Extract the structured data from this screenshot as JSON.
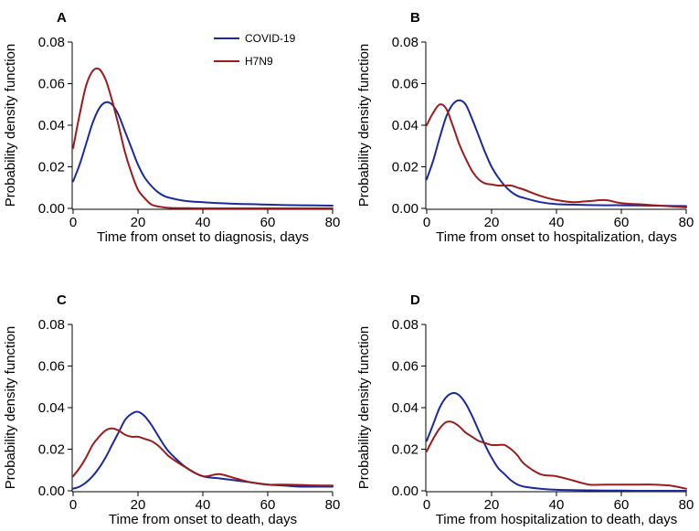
{
  "legend": {
    "entries": [
      {
        "name": "COVID-19",
        "color": "#1c2a9a"
      },
      {
        "name": "H7N9",
        "color": "#9a1c1c"
      }
    ]
  },
  "chart_data": [
    {
      "panel": "A",
      "type": "line",
      "xlabel": "Time from onset to diagnosis, days",
      "ylabel": "Probability density function",
      "xlim": [
        0,
        80
      ],
      "ylim": [
        0,
        0.08
      ],
      "xticks": [
        "0",
        "20",
        "40",
        "60",
        "80"
      ],
      "yticks": [
        "0.00",
        "0.02",
        "0.04",
        "0.06",
        "0.08"
      ],
      "legend_position": "top-right",
      "x": [
        0,
        2,
        4,
        6,
        8,
        10,
        12,
        14,
        16,
        18,
        20,
        22,
        24,
        26,
        28,
        30,
        35,
        40,
        45,
        50,
        55,
        60,
        65,
        70,
        75,
        80
      ],
      "series": [
        {
          "name": "COVID-19",
          "color": "#1c2a9a",
          "values": [
            0.013,
            0.021,
            0.031,
            0.041,
            0.048,
            0.051,
            0.05,
            0.045,
            0.037,
            0.029,
            0.021,
            0.015,
            0.011,
            0.008,
            0.006,
            0.005,
            0.0035,
            0.003,
            0.0025,
            0.0022,
            0.002,
            0.0018,
            0.0016,
            0.0015,
            0.0014,
            0.0013
          ]
        },
        {
          "name": "H7N9",
          "color": "#9a1c1c",
          "values": [
            0.029,
            0.045,
            0.059,
            0.066,
            0.067,
            0.062,
            0.052,
            0.04,
            0.027,
            0.017,
            0.009,
            0.005,
            0.002,
            0.001,
            0.0005,
            0.0002,
            0.0001,
            0.0,
            0.0,
            0.0,
            0.0,
            0.0,
            0.0,
            0.0,
            0.0,
            0.0
          ]
        }
      ]
    },
    {
      "panel": "B",
      "type": "line",
      "xlabel": "Time from onset to hospitalization, days",
      "ylabel": "Probability density function",
      "xlim": [
        0,
        80
      ],
      "ylim": [
        0,
        0.08
      ],
      "xticks": [
        "0",
        "20",
        "40",
        "60",
        "80"
      ],
      "yticks": [
        "0.00",
        "0.02",
        "0.04",
        "0.06",
        "0.08"
      ],
      "x": [
        0,
        2,
        4,
        6,
        8,
        10,
        12,
        14,
        16,
        18,
        20,
        22,
        24,
        26,
        28,
        30,
        35,
        40,
        45,
        50,
        55,
        60,
        65,
        70,
        75,
        80
      ],
      "series": [
        {
          "name": "COVID-19",
          "color": "#1c2a9a",
          "values": [
            0.014,
            0.023,
            0.034,
            0.044,
            0.05,
            0.052,
            0.05,
            0.043,
            0.035,
            0.027,
            0.02,
            0.015,
            0.011,
            0.008,
            0.006,
            0.005,
            0.003,
            0.002,
            0.0018,
            0.0016,
            0.0015,
            0.0015,
            0.0014,
            0.0013,
            0.0012,
            0.0011
          ]
        },
        {
          "name": "H7N9",
          "color": "#9a1c1c",
          "values": [
            0.04,
            0.046,
            0.05,
            0.048,
            0.04,
            0.031,
            0.024,
            0.018,
            0.014,
            0.012,
            0.0115,
            0.011,
            0.011,
            0.011,
            0.01,
            0.009,
            0.006,
            0.004,
            0.003,
            0.0035,
            0.004,
            0.0025,
            0.002,
            0.0015,
            0.001,
            0.0005
          ]
        }
      ]
    },
    {
      "panel": "C",
      "type": "line",
      "xlabel": "Time from onset to death, days",
      "ylabel": "Probability density function",
      "xlim": [
        0,
        80
      ],
      "ylim": [
        0,
        0.08
      ],
      "xticks": [
        "0",
        "20",
        "40",
        "60",
        "80"
      ],
      "yticks": [
        "0.00",
        "0.02",
        "0.04",
        "0.06",
        "0.08"
      ],
      "x": [
        0,
        2,
        4,
        6,
        8,
        10,
        12,
        14,
        16,
        18,
        20,
        22,
        24,
        26,
        28,
        30,
        35,
        40,
        45,
        50,
        55,
        60,
        65,
        70,
        75,
        80
      ],
      "series": [
        {
          "name": "COVID-19",
          "color": "#1c2a9a",
          "values": [
            0.001,
            0.002,
            0.004,
            0.007,
            0.011,
            0.016,
            0.022,
            0.028,
            0.034,
            0.037,
            0.038,
            0.036,
            0.032,
            0.027,
            0.022,
            0.018,
            0.011,
            0.007,
            0.006,
            0.005,
            0.004,
            0.003,
            0.0025,
            0.002,
            0.002,
            0.002
          ]
        },
        {
          "name": "H7N9",
          "color": "#9a1c1c",
          "values": [
            0.007,
            0.011,
            0.016,
            0.022,
            0.026,
            0.029,
            0.03,
            0.029,
            0.027,
            0.026,
            0.026,
            0.025,
            0.024,
            0.022,
            0.019,
            0.016,
            0.011,
            0.007,
            0.008,
            0.006,
            0.004,
            0.003,
            0.003,
            0.0028,
            0.0026,
            0.0025
          ]
        }
      ]
    },
    {
      "panel": "D",
      "type": "line",
      "xlabel": "Time from hospitalization to death, days",
      "ylabel": "Probability density function",
      "xlim": [
        0,
        80
      ],
      "ylim": [
        0,
        0.08
      ],
      "xticks": [
        "0",
        "20",
        "40",
        "60",
        "80"
      ],
      "yticks": [
        "0.00",
        "0.02",
        "0.04",
        "0.06",
        "0.08"
      ],
      "x": [
        0,
        2,
        4,
        6,
        8,
        10,
        12,
        14,
        16,
        18,
        20,
        22,
        24,
        26,
        28,
        30,
        35,
        40,
        45,
        50,
        55,
        60,
        65,
        70,
        75,
        80
      ],
      "series": [
        {
          "name": "COVID-19",
          "color": "#1c2a9a",
          "values": [
            0.024,
            0.032,
            0.04,
            0.045,
            0.047,
            0.046,
            0.042,
            0.036,
            0.029,
            0.022,
            0.016,
            0.011,
            0.008,
            0.005,
            0.003,
            0.002,
            0.001,
            0.0005,
            0.0003,
            0.0002,
            0.0001,
            0.0001,
            0.0,
            0.0,
            0.0,
            0.0
          ]
        },
        {
          "name": "H7N9",
          "color": "#9a1c1c",
          "values": [
            0.019,
            0.025,
            0.03,
            0.033,
            0.033,
            0.031,
            0.028,
            0.026,
            0.024,
            0.023,
            0.022,
            0.022,
            0.022,
            0.02,
            0.017,
            0.013,
            0.008,
            0.007,
            0.005,
            0.003,
            0.003,
            0.003,
            0.003,
            0.003,
            0.0025,
            0.001
          ]
        }
      ]
    }
  ]
}
